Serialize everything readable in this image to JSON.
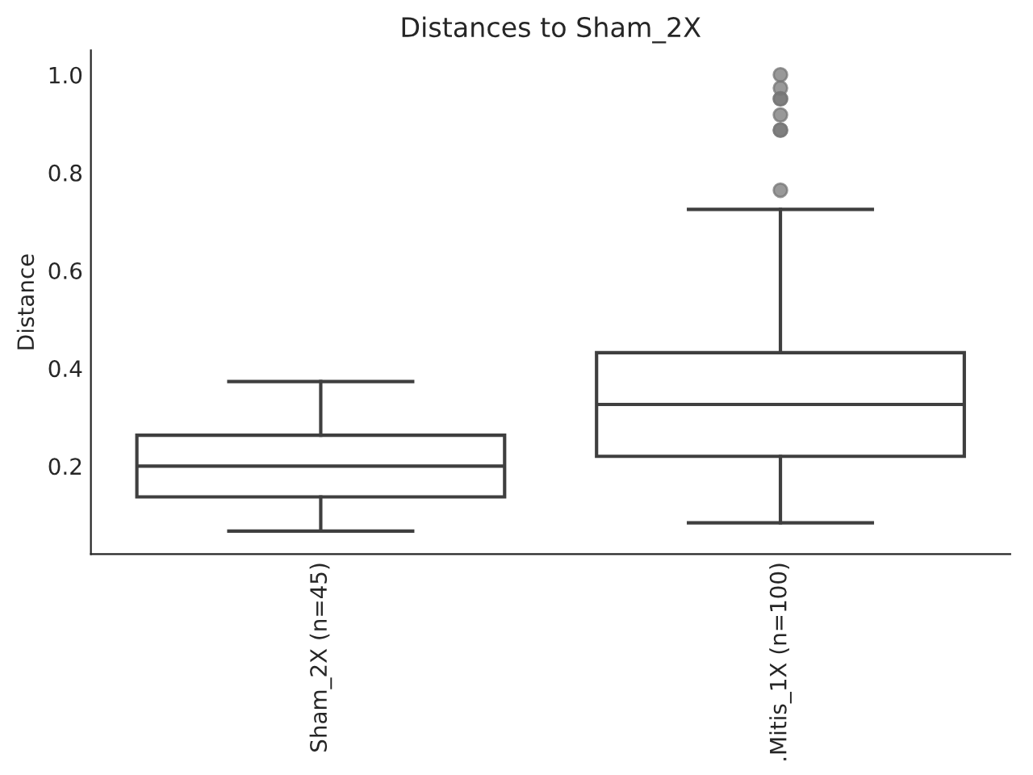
{
  "chart_data": {
    "type": "box",
    "title": "Distances to Sham_2X",
    "ylabel": "Distance",
    "categories": [
      "Sham_2X (n=45)",
      ".Mitis_1X (n=100)"
    ],
    "boxes": [
      {
        "low": 0.067,
        "q1": 0.137,
        "median": 0.2,
        "q3": 0.263,
        "high": 0.373
      },
      {
        "low": 0.084,
        "q1": 0.22,
        "median": 0.326,
        "q3": 0.432,
        "high": 0.725,
        "outliers": [
          0.764,
          0.887,
          0.887,
          0.918,
          0.951,
          0.951,
          0.973,
          1.0
        ]
      }
    ],
    "color": "#3f3f3f",
    "ylim": [
      0.02,
      1.05
    ],
    "yticks": [
      {
        "value": 0.2,
        "label": "0.2"
      },
      {
        "value": 0.4,
        "label": "0.4"
      },
      {
        "value": 0.6,
        "label": "0.6"
      },
      {
        "value": 0.8,
        "label": "0.8"
      },
      {
        "value": 1.0,
        "label": "1.0"
      }
    ],
    "grid": false
  }
}
